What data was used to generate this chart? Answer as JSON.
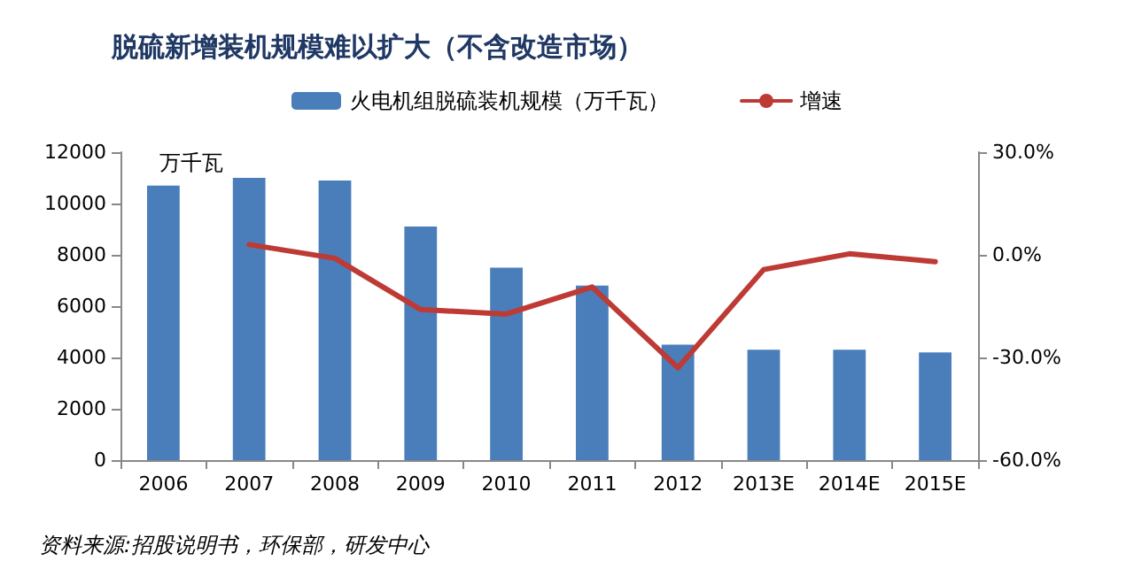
{
  "chart_data": {
    "type": "bar",
    "title": "脱硫新增装机规模难以扩大（不含改造市场）",
    "categories": [
      "2006",
      "2007",
      "2008",
      "2009",
      "2010",
      "2011",
      "2012",
      "2013E",
      "2014E",
      "2015E"
    ],
    "series": [
      {
        "name": "火电机组脱硫装机规模（万千瓦）",
        "color": "#4a7ebb",
        "values": [
          10700,
          11000,
          10900,
          9100,
          7500,
          6800,
          4500,
          4300,
          4300,
          4200
        ]
      },
      {
        "name": "增速",
        "type": "line",
        "axis": "y2",
        "color": "#be3a34",
        "values": [
          null,
          3,
          -1,
          -16,
          -17.3,
          -9.4,
          -33,
          -4.3,
          0.3,
          -2
        ]
      }
    ],
    "ylabel": "万千瓦",
    "ylim": [
      0,
      12000
    ],
    "yticks": [
      0,
      2000,
      4000,
      6000,
      8000,
      10000,
      12000
    ],
    "y2lim": [
      -60,
      30
    ],
    "y2ticks": [
      {
        "value": -60,
        "label": "-60.0%"
      },
      {
        "value": -30,
        "label": "-30.0%"
      },
      {
        "value": 0,
        "label": "0.0%"
      },
      {
        "value": 30,
        "label": "30.0%"
      }
    ],
    "grid": false,
    "legend": "top",
    "marker": "none",
    "line_style": "solid",
    "annotations": [
      "资料来源:招股说明书，环保部，研发中心"
    ]
  }
}
